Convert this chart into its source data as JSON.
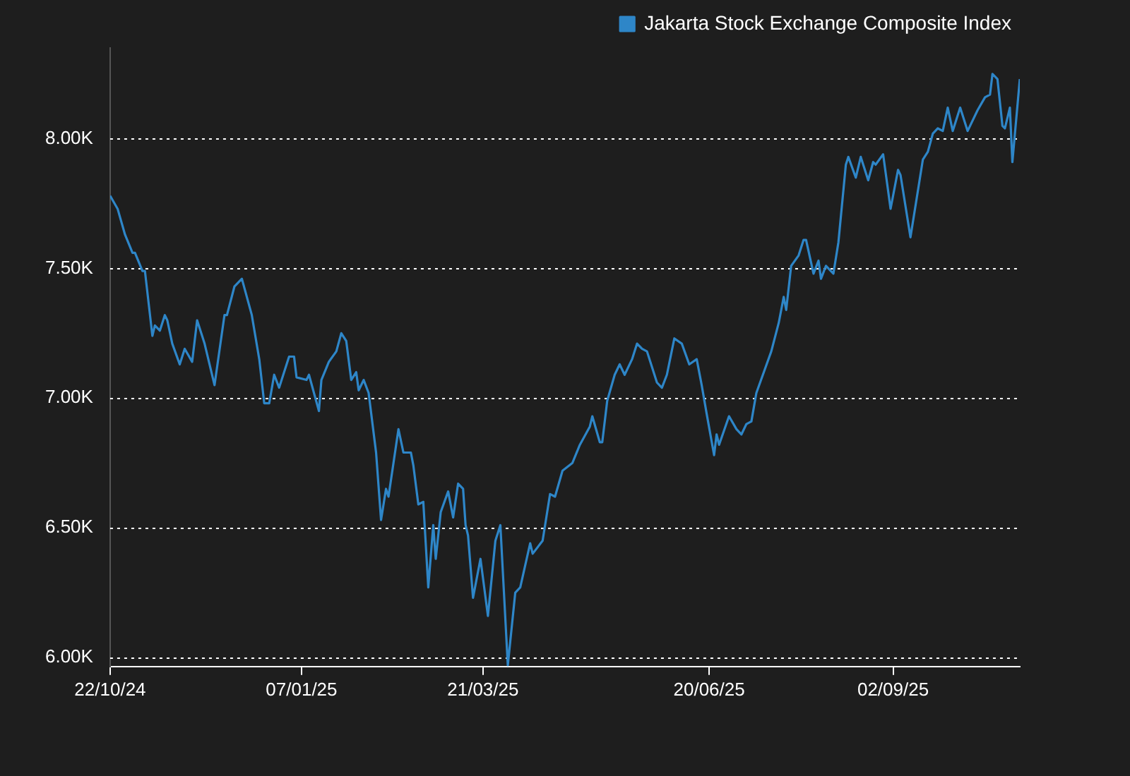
{
  "chart_data": {
    "type": "line",
    "legend": "top right",
    "grid": "y",
    "marker": "none",
    "line_style": "solid",
    "x": [
      "2024-10-22",
      "2024-10-25",
      "2024-10-28",
      "2024-10-31",
      "2024-11-01",
      "2024-11-04",
      "2024-11-05",
      "2024-11-08",
      "2024-11-09",
      "2024-11-11",
      "2024-11-13",
      "2024-11-14",
      "2024-11-16",
      "2024-11-19",
      "2024-11-21",
      "2024-11-24",
      "2024-11-26",
      "2024-11-29",
      "2024-12-03",
      "2024-12-07",
      "2024-12-08",
      "2024-12-11",
      "2024-12-14",
      "2024-12-18",
      "2024-12-21",
      "2024-12-23",
      "2024-12-25",
      "2024-12-27",
      "2024-12-29",
      "2025-01-02",
      "2025-01-04",
      "2025-01-05",
      "2025-01-09",
      "2025-01-10",
      "2025-01-14",
      "2025-01-15",
      "2025-01-18",
      "2025-01-21",
      "2025-01-23",
      "2025-01-25",
      "2025-01-27",
      "2025-01-29",
      "2025-01-30",
      "2025-02-01",
      "2025-02-03",
      "2025-02-06",
      "2025-02-08",
      "2025-02-10",
      "2025-02-11",
      "2025-02-15",
      "2025-02-17",
      "2025-02-20",
      "2025-02-21",
      "2025-02-23",
      "2025-02-25",
      "2025-02-27",
      "2025-03-01",
      "2025-03-02",
      "2025-03-04",
      "2025-03-07",
      "2025-03-09",
      "2025-03-11",
      "2025-03-13",
      "2025-03-14",
      "2025-03-15",
      "2025-03-17",
      "2025-03-20",
      "2025-03-23",
      "2025-03-26",
      "2025-03-28",
      "2025-03-31",
      "2025-04-03",
      "2025-04-05",
      "2025-04-09",
      "2025-04-10",
      "2025-04-14",
      "2025-04-17",
      "2025-04-19",
      "2025-04-22",
      "2025-04-26",
      "2025-04-29",
      "2025-05-03",
      "2025-05-04",
      "2025-05-07",
      "2025-05-08",
      "2025-05-10",
      "2025-05-13",
      "2025-05-15",
      "2025-05-17",
      "2025-05-20",
      "2025-05-22",
      "2025-05-24",
      "2025-05-26",
      "2025-05-30",
      "2025-06-01",
      "2025-06-03",
      "2025-06-06",
      "2025-06-09",
      "2025-06-12",
      "2025-06-15",
      "2025-06-17",
      "2025-06-19",
      "2025-06-22",
      "2025-06-23",
      "2025-06-24",
      "2025-06-28",
      "2025-07-01",
      "2025-07-03",
      "2025-07-05",
      "2025-07-07",
      "2025-07-09",
      "2025-07-15",
      "2025-07-18",
      "2025-07-20",
      "2025-07-21",
      "2025-07-23",
      "2025-07-26",
      "2025-07-28",
      "2025-07-29",
      "2025-08-01",
      "2025-08-03",
      "2025-08-04",
      "2025-08-06",
      "2025-08-09",
      "2025-08-11",
      "2025-08-14",
      "2025-08-15",
      "2025-08-18",
      "2025-08-20",
      "2025-08-23",
      "2025-08-25",
      "2025-08-26",
      "2025-08-29",
      "2025-09-01",
      "2025-09-04",
      "2025-09-05",
      "2025-09-09",
      "2025-09-11",
      "2025-09-14",
      "2025-09-16",
      "2025-09-18",
      "2025-09-20",
      "2025-09-22",
      "2025-09-24",
      "2025-09-26",
      "2025-09-29",
      "2025-10-02",
      "2025-10-06",
      "2025-10-09",
      "2025-10-11",
      "2025-10-12",
      "2025-10-14",
      "2025-10-16",
      "2025-10-17",
      "2025-10-19",
      "2025-10-20",
      "2025-10-23"
    ],
    "series": [
      {
        "name": "Jakarta Stock Exchange Composite Index",
        "color": "#2e86c8",
        "values": [
          7780,
          7730,
          7630,
          7560,
          7560,
          7490,
          7490,
          7240,
          7280,
          7260,
          7320,
          7300,
          7210,
          7130,
          7190,
          7140,
          7300,
          7210,
          7050,
          7320,
          7320,
          7430,
          7460,
          7320,
          7150,
          6980,
          6980,
          7090,
          7040,
          7160,
          7160,
          7080,
          7070,
          7090,
          6950,
          7070,
          7140,
          7180,
          7250,
          7220,
          7070,
          7100,
          7030,
          7070,
          7020,
          6790,
          6530,
          6650,
          6620,
          6880,
          6790,
          6790,
          6740,
          6590,
          6600,
          6270,
          6510,
          6380,
          6560,
          6640,
          6540,
          6670,
          6650,
          6510,
          6470,
          6230,
          6380,
          6160,
          6450,
          6510,
          5970,
          6250,
          6270,
          6440,
          6400,
          6450,
          6630,
          6620,
          6720,
          6750,
          6820,
          6890,
          6930,
          6830,
          6830,
          6990,
          7090,
          7130,
          7090,
          7150,
          7210,
          7190,
          7180,
          7060,
          7040,
          7090,
          7230,
          7210,
          7130,
          7150,
          7050,
          6940,
          6780,
          6860,
          6820,
          6930,
          6880,
          6860,
          6900,
          6910,
          7020,
          7180,
          7290,
          7390,
          7340,
          7510,
          7550,
          7610,
          7610,
          7480,
          7530,
          7460,
          7510,
          7480,
          7600,
          7900,
          7930,
          7850,
          7930,
          7840,
          7910,
          7900,
          7940,
          7730,
          7880,
          7860,
          7620,
          7740,
          7920,
          7950,
          8020,
          8040,
          8030,
          8120,
          8030,
          8120,
          8030,
          8110,
          8160,
          8170,
          8250,
          8230,
          8050,
          8040,
          8120,
          7910,
          8230
        ]
      }
    ],
    "xlim": [
      "2024-10-22",
      "2025-10-23"
    ],
    "xticks": [
      {
        "value": "2024-10-22",
        "label": "22/10/24"
      },
      {
        "value": "2025-01-07",
        "label": "07/01/25"
      },
      {
        "value": "2025-03-21",
        "label": "21/03/25"
      },
      {
        "value": "2025-06-20",
        "label": "20/06/25"
      },
      {
        "value": "2025-09-02",
        "label": "02/09/25"
      }
    ],
    "ylim": [
      5965,
      8350
    ],
    "yticks": [
      {
        "value": 6000,
        "label": "6.00K"
      },
      {
        "value": 6500,
        "label": "6.50K"
      },
      {
        "value": 7000,
        "label": "7.00K"
      },
      {
        "value": 7500,
        "label": "7.50K"
      },
      {
        "value": 8000,
        "label": "8.00K"
      }
    ]
  }
}
